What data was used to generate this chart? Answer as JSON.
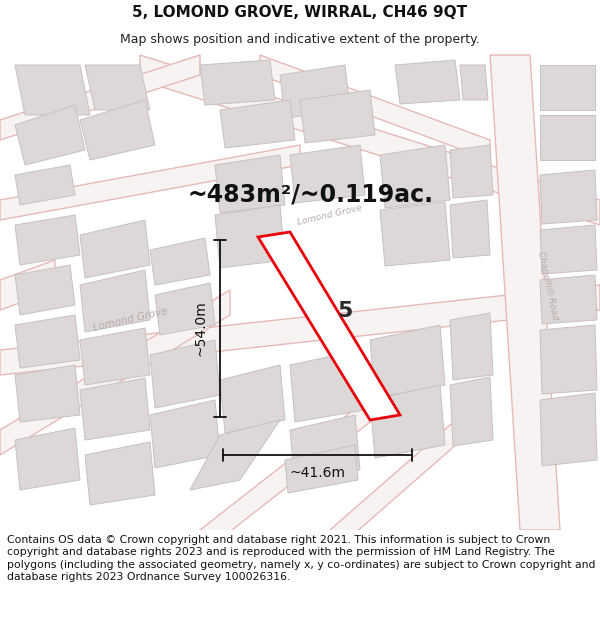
{
  "title": "5, LOMOND GROVE, WIRRAL, CH46 9QT",
  "subtitle": "Map shows position and indicative extent of the property.",
  "area_label": "~483m²/~0.119ac.",
  "property_number": "5",
  "dim_width": "~41.6m",
  "dim_height": "~54.0m",
  "footer_text": "Contains OS data © Crown copyright and database right 2021. This information is subject to Crown copyright and database rights 2023 and is reproduced with the permission of HM Land Registry. The polygons (including the associated geometry, namely x, y co-ordinates) are subject to Crown copyright and database rights 2023 Ordnance Survey 100026316.",
  "map_bg": "#f7f3f3",
  "plot_color": "#e8000a",
  "plot_fill": "#ffffff",
  "street_color": "#e8b8b8",
  "street_fill": "#f7f3f3",
  "building_fill": "#ddd8d8",
  "building_edge": "#c8c0c0",
  "road_label_color": "#b8aaaa",
  "title_fontsize": 11,
  "subtitle_fontsize": 9,
  "area_fontsize": 17,
  "prop_num_fontsize": 16,
  "dim_fontsize": 10,
  "footer_fontsize": 7.8
}
